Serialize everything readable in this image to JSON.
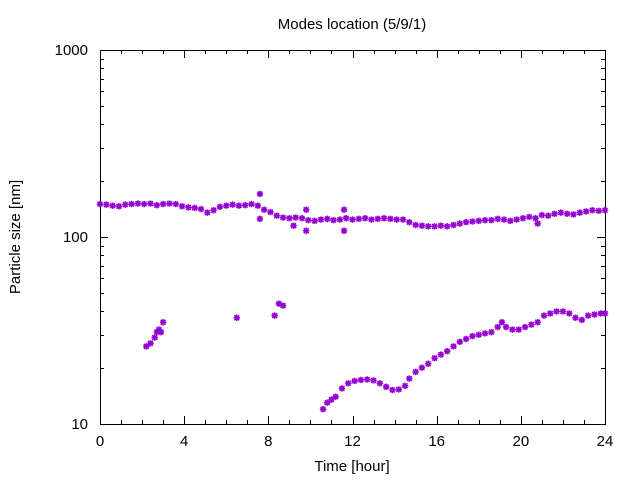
{
  "chart_data": {
    "type": "scatter",
    "title": "Modes location (5/9/1)",
    "xlabel": "Time [hour]",
    "ylabel": "Particle size [nm]",
    "xlim": [
      0,
      24
    ],
    "ylim": [
      10,
      1000
    ],
    "yscale": "log",
    "xticks": [
      0,
      4,
      8,
      12,
      16,
      20,
      24
    ],
    "yticks": [
      10,
      100,
      1000
    ],
    "marker_color": "#9400d3",
    "grid": false,
    "series": [
      {
        "mode": "upper",
        "points": [
          [
            0.0,
            150
          ],
          [
            0.3,
            149
          ],
          [
            0.6,
            147
          ],
          [
            0.9,
            146
          ],
          [
            1.2,
            149
          ],
          [
            1.5,
            150
          ],
          [
            1.8,
            151
          ],
          [
            2.1,
            150
          ],
          [
            2.4,
            151
          ],
          [
            2.7,
            148
          ],
          [
            3.0,
            150
          ],
          [
            3.3,
            151
          ],
          [
            3.6,
            150
          ],
          [
            3.9,
            146
          ],
          [
            4.2,
            144
          ],
          [
            4.5,
            143
          ],
          [
            4.8,
            141
          ],
          [
            5.1,
            135
          ],
          [
            5.4,
            139
          ],
          [
            5.7,
            145
          ],
          [
            6.0,
            147
          ],
          [
            6.3,
            149
          ],
          [
            6.6,
            147
          ],
          [
            6.9,
            148
          ],
          [
            7.2,
            150
          ],
          [
            7.5,
            147
          ],
          [
            7.8,
            140
          ],
          [
            8.1,
            136
          ],
          [
            8.4,
            130
          ],
          [
            8.7,
            127
          ],
          [
            9.0,
            126
          ],
          [
            9.3,
            127
          ],
          [
            9.6,
            126
          ],
          [
            9.9,
            123
          ],
          [
            10.2,
            122
          ],
          [
            10.5,
            124
          ],
          [
            10.8,
            125
          ],
          [
            11.1,
            123
          ],
          [
            11.4,
            124
          ],
          [
            11.7,
            126
          ],
          [
            12.0,
            124
          ],
          [
            12.3,
            125
          ],
          [
            12.6,
            126
          ],
          [
            12.9,
            124
          ],
          [
            13.2,
            125
          ],
          [
            13.5,
            126
          ],
          [
            13.8,
            125
          ],
          [
            14.1,
            124
          ],
          [
            14.4,
            124
          ],
          [
            14.7,
            120
          ],
          [
            15.0,
            116
          ],
          [
            15.3,
            115
          ],
          [
            15.6,
            114
          ],
          [
            15.9,
            114
          ],
          [
            16.2,
            115
          ],
          [
            16.5,
            114
          ],
          [
            16.8,
            116
          ],
          [
            17.1,
            118
          ],
          [
            17.4,
            120
          ],
          [
            17.7,
            121
          ],
          [
            18.0,
            122
          ],
          [
            18.3,
            123
          ],
          [
            18.6,
            123
          ],
          [
            18.9,
            125
          ],
          [
            19.2,
            124
          ],
          [
            19.5,
            122
          ],
          [
            19.8,
            124
          ],
          [
            20.1,
            126
          ],
          [
            20.4,
            128
          ],
          [
            20.7,
            126
          ],
          [
            21.0,
            131
          ],
          [
            21.3,
            130
          ],
          [
            21.6,
            133
          ],
          [
            21.9,
            135
          ],
          [
            22.2,
            133
          ],
          [
            22.5,
            132
          ],
          [
            22.8,
            135
          ],
          [
            23.1,
            137
          ],
          [
            23.4,
            139
          ],
          [
            23.7,
            138
          ],
          [
            24.0,
            139
          ],
          [
            7.6,
            170
          ],
          [
            7.6,
            125
          ],
          [
            9.2,
            115
          ],
          [
            9.8,
            140
          ],
          [
            9.8,
            108
          ],
          [
            11.6,
            140
          ],
          [
            11.6,
            108
          ],
          [
            20.8,
            118
          ]
        ]
      },
      {
        "mode": "lower",
        "points": [
          [
            2.2,
            26
          ],
          [
            2.4,
            27
          ],
          [
            2.6,
            29
          ],
          [
            2.7,
            31
          ],
          [
            2.8,
            32
          ],
          [
            2.9,
            31
          ],
          [
            3.0,
            35
          ],
          [
            6.5,
            37
          ],
          [
            8.3,
            38
          ],
          [
            8.5,
            44
          ],
          [
            8.7,
            43
          ],
          [
            10.6,
            12
          ],
          [
            10.8,
            13
          ],
          [
            11.0,
            13.5
          ],
          [
            11.2,
            14
          ],
          [
            11.5,
            15.5
          ],
          [
            11.8,
            16.5
          ],
          [
            12.1,
            17
          ],
          [
            12.4,
            17.2
          ],
          [
            12.7,
            17.3
          ],
          [
            13.0,
            17.1
          ],
          [
            13.3,
            16.5
          ],
          [
            13.6,
            15.8
          ],
          [
            13.9,
            15.2
          ],
          [
            14.2,
            15.3
          ],
          [
            14.5,
            16
          ],
          [
            14.7,
            17.5
          ],
          [
            15.0,
            19
          ],
          [
            15.3,
            20
          ],
          [
            15.6,
            21
          ],
          [
            15.9,
            22.5
          ],
          [
            16.2,
            23.5
          ],
          [
            16.5,
            24.5
          ],
          [
            16.8,
            26
          ],
          [
            17.1,
            27.5
          ],
          [
            17.4,
            28.5
          ],
          [
            17.7,
            29.5
          ],
          [
            18.0,
            30
          ],
          [
            18.3,
            30.5
          ],
          [
            18.6,
            31
          ],
          [
            18.9,
            33
          ],
          [
            19.1,
            35
          ],
          [
            19.3,
            33
          ],
          [
            19.6,
            32
          ],
          [
            19.9,
            32
          ],
          [
            20.2,
            33
          ],
          [
            20.5,
            34
          ],
          [
            20.8,
            35
          ],
          [
            21.1,
            38
          ],
          [
            21.4,
            39
          ],
          [
            21.7,
            40
          ],
          [
            22.0,
            40
          ],
          [
            22.3,
            39
          ],
          [
            22.6,
            37
          ],
          [
            22.9,
            36
          ],
          [
            23.2,
            38
          ],
          [
            23.5,
            38.5
          ],
          [
            23.8,
            39
          ],
          [
            24.0,
            39
          ]
        ]
      }
    ]
  }
}
